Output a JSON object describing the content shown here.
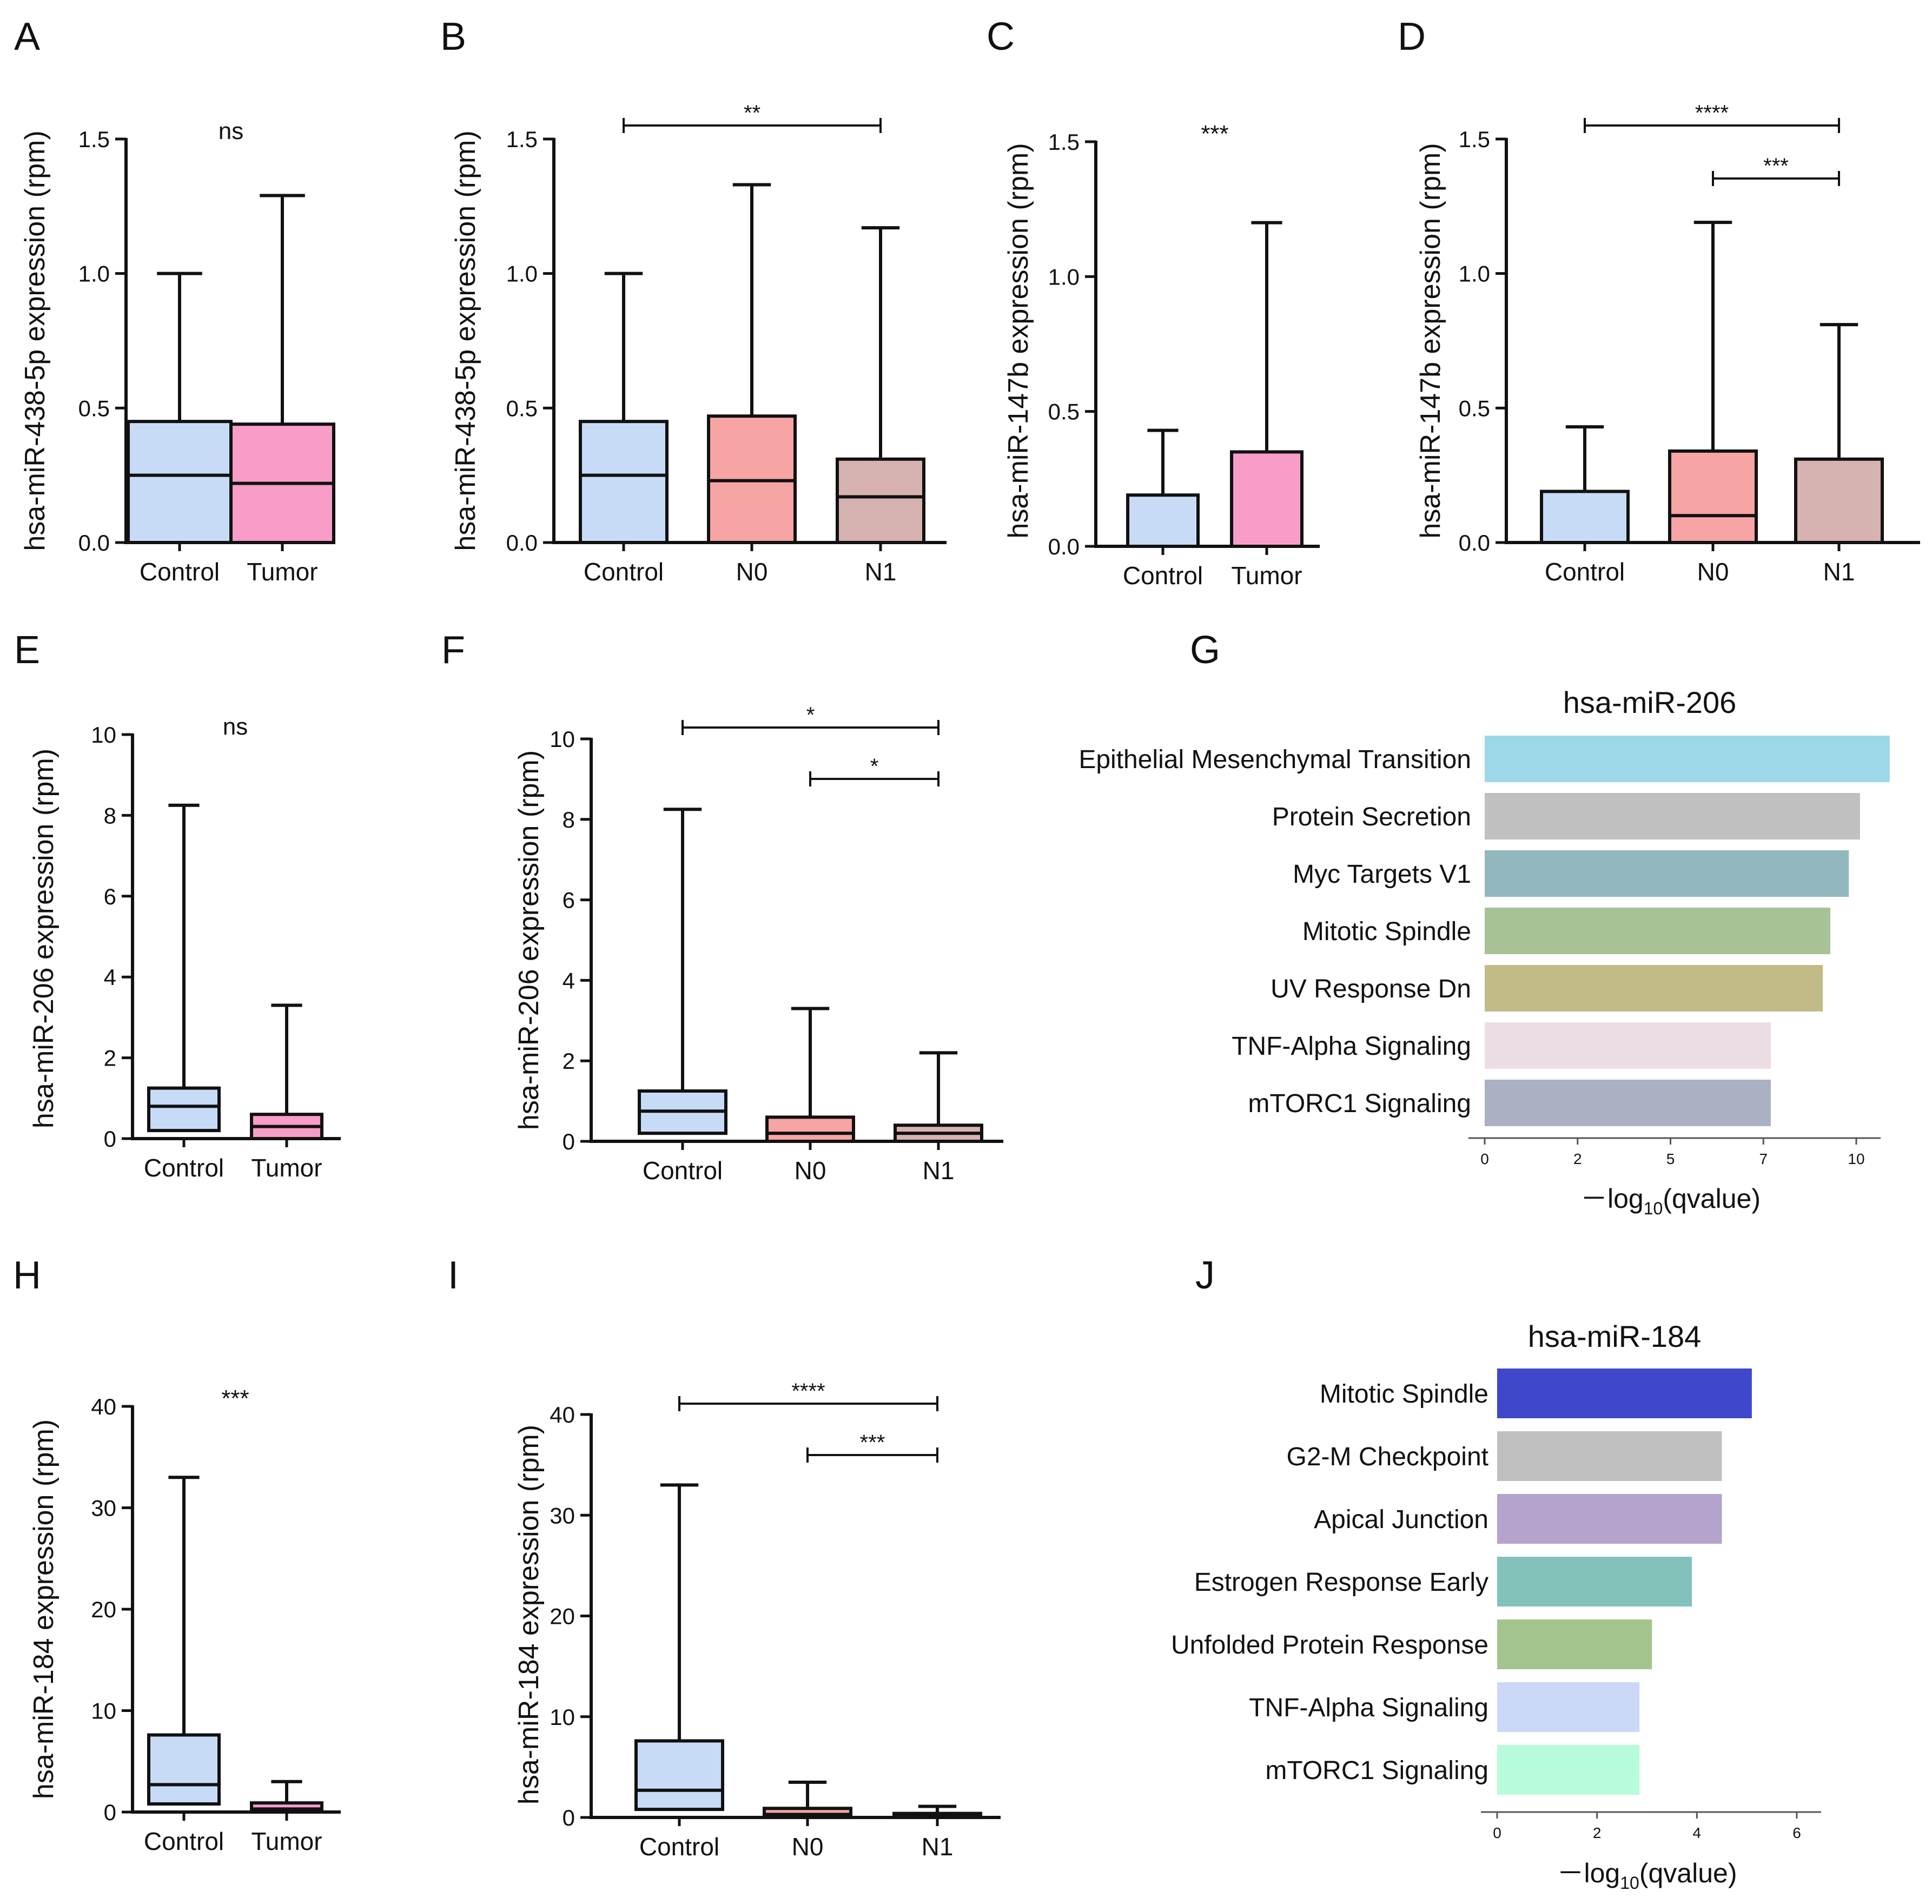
{
  "figure": {
    "panels": [
      {
        "letter": "A",
        "box": {
          "ylabel": "hsa-miR-438-5p expression (rpm)",
          "ticks": [
            "0.0",
            "0.5",
            "1.0",
            "1.5"
          ],
          "groups": [
            {
              "name": "Control",
              "color": "#c7dbf7",
              "q1": 0,
              "median": 0.25,
              "q3": 0.45,
              "max": 1.0
            },
            {
              "name": "Tumor",
              "color": "#f79dc7",
              "q1": 0,
              "median": 0.22,
              "q3": 0.44,
              "max": 1.29
            }
          ],
          "sig": [
            {
              "label": "ns",
              "from": 0,
              "to": 1,
              "line": false
            }
          ]
        }
      },
      {
        "letter": "B",
        "box": {
          "ylabel": "hsa-miR-438-5p expression (rpm)",
          "ticks": [
            "0.0",
            "0.5",
            "1.0",
            "1.5"
          ],
          "groups": [
            {
              "name": "Control",
              "color": "#c7dbf7",
              "q1": 0,
              "median": 0.25,
              "q3": 0.45,
              "max": 1.0
            },
            {
              "name": "N0",
              "color": "#f7a4a4",
              "q1": 0,
              "median": 0.23,
              "q3": 0.47,
              "max": 1.33
            },
            {
              "name": "N1",
              "color": "#d6b2b0",
              "q1": 0,
              "median": 0.17,
              "q3": 0.31,
              "max": 1.17
            }
          ],
          "sig": [
            {
              "label": "**",
              "from": 0,
              "to": 2,
              "line": true
            }
          ]
        }
      },
      {
        "letter": "C",
        "box": {
          "ylabel": "hsa-miR-147b expression (rpm)",
          "ticks": [
            "0.0",
            "0.5",
            "1.0",
            "1.5"
          ],
          "groups": [
            {
              "name": "Control",
              "color": "#c7dbf7",
              "q1": 0,
              "median": 0.0,
              "q3": 0.19,
              "max": 0.43
            },
            {
              "name": "Tumor",
              "color": "#f79dc7",
              "q1": 0,
              "median": 0.0,
              "q3": 0.35,
              "max": 1.2
            }
          ],
          "sig": [
            {
              "label": "***",
              "from": 0,
              "to": 1,
              "line": false
            }
          ]
        }
      },
      {
        "letter": "D",
        "box": {
          "ylabel": "hsa-miR-147b expression (rpm)",
          "ticks": [
            "0.0",
            "0.5",
            "1.0",
            "1.5"
          ],
          "groups": [
            {
              "name": "Control",
              "color": "#c7dbf7",
              "q1": 0,
              "median": 0.0,
              "q3": 0.19,
              "max": 0.43
            },
            {
              "name": "N0",
              "color": "#f7a4a4",
              "q1": 0,
              "median": 0.1,
              "q3": 0.34,
              "max": 1.19
            },
            {
              "name": "N1",
              "color": "#d6b2b0",
              "q1": 0,
              "median": 0.0,
              "q3": 0.31,
              "max": 0.81
            }
          ],
          "sig": [
            {
              "label": "****",
              "from": 0,
              "to": 2,
              "line": true
            },
            {
              "label": "***",
              "from": 1,
              "to": 2,
              "line": true
            }
          ]
        }
      },
      {
        "letter": "E",
        "box": {
          "ylabel": "hsa-miR-206 expression (rpm)",
          "ticks": [
            "0",
            "2",
            "4",
            "6",
            "8",
            "10"
          ],
          "groups": [
            {
              "name": "Control",
              "color": "#c7dbf7",
              "q1": 0.2,
              "median": 0.8,
              "q3": 1.25,
              "max": 8.25
            },
            {
              "name": "Tumor",
              "color": "#f79dc7",
              "q1": 0.0,
              "median": 0.3,
              "q3": 0.6,
              "max": 3.3
            }
          ],
          "sig": [
            {
              "label": "ns",
              "from": 0,
              "to": 1,
              "line": false
            }
          ]
        }
      },
      {
        "letter": "F",
        "box": {
          "ylabel": "hsa-miR-206 expression (rpm)",
          "ticks": [
            "0",
            "2",
            "4",
            "6",
            "8",
            "10"
          ],
          "groups": [
            {
              "name": "Control",
              "color": "#c7dbf7",
              "q1": 0.2,
              "median": 0.75,
              "q3": 1.25,
              "max": 8.25
            },
            {
              "name": "N0",
              "color": "#f7a4a4",
              "q1": 0.0,
              "median": 0.2,
              "q3": 0.6,
              "max": 3.3
            },
            {
              "name": "N1",
              "color": "#d6b2b0",
              "q1": 0.0,
              "median": 0.2,
              "q3": 0.4,
              "max": 2.2
            }
          ],
          "sig": [
            {
              "label": "*",
              "from": 0,
              "to": 2,
              "line": true
            },
            {
              "label": "*",
              "from": 1,
              "to": 2,
              "line": true
            }
          ]
        }
      },
      {
        "letter": "G",
        "bars": {
          "title": "hsa-miR-206",
          "xlabel_pre": "－log",
          "xlabel_sub": "10",
          "xlabel_post": "(qvalue)",
          "ticks": [
            "0",
            "2",
            "5",
            "7",
            "10"
          ],
          "items": [
            {
              "label": "Epithelial Mesenchymal Transition",
              "value": 10.9,
              "color": "#9cd8e8"
            },
            {
              "label": "Protein Secretion",
              "value": 10.1,
              "color": "#c0c0c0"
            },
            {
              "label": "Myc Targets V1",
              "value": 9.8,
              "color": "#92b8bd"
            },
            {
              "label": "Mitotic Spindle",
              "value": 9.3,
              "color": "#a8c195"
            },
            {
              "label": "UV Response Dn",
              "value": 9.1,
              "color": "#c2bb88"
            },
            {
              "label": "TNF-Alpha Signaling",
              "value": 7.7,
              "color": "#ecdde5"
            },
            {
              "label": "mTORC1 Signaling",
              "value": 7.7,
              "color": "#a9b1c2"
            }
          ]
        }
      },
      {
        "letter": "H",
        "box": {
          "ylabel": "hsa-miR-184 expression (rpm)",
          "ticks": [
            "0",
            "10",
            "20",
            "30",
            "40"
          ],
          "groups": [
            {
              "name": "Control",
              "color": "#c7dbf7",
              "q1": 0.8,
              "median": 2.7,
              "q3": 7.6,
              "max": 33
            },
            {
              "name": "Tumor",
              "color": "#f79dc7",
              "q1": 0.0,
              "median": 0.3,
              "q3": 0.9,
              "max": 3.0
            }
          ],
          "sig": [
            {
              "label": "***",
              "from": 0,
              "to": 1,
              "line": false
            }
          ]
        }
      },
      {
        "letter": "I",
        "box": {
          "ylabel": "hsa-miR-184 expression (rpm)",
          "ticks": [
            "0",
            "10",
            "20",
            "30",
            "40"
          ],
          "groups": [
            {
              "name": "Control",
              "color": "#c7dbf7",
              "q1": 0.8,
              "median": 2.7,
              "q3": 7.6,
              "max": 33
            },
            {
              "name": "N0",
              "color": "#f7a4a4",
              "q1": 0.0,
              "median": 0.3,
              "q3": 0.9,
              "max": 3.5
            },
            {
              "name": "N1",
              "color": "#d6b2b0",
              "q1": 0.0,
              "median": 0.2,
              "q3": 0.4,
              "max": 1.1
            }
          ],
          "sig": [
            {
              "label": "****",
              "from": 0,
              "to": 2,
              "line": true
            },
            {
              "label": "***",
              "from": 1,
              "to": 2,
              "line": true
            }
          ]
        }
      },
      {
        "letter": "J",
        "bars": {
          "title": "hsa-miR-184",
          "xlabel_pre": "－log",
          "xlabel_sub": "10",
          "xlabel_post": "(qvalue)",
          "ticks": [
            "0",
            "2",
            "4",
            "6"
          ],
          "items": [
            {
              "label": "Mitotic Spindle",
              "value": 5.1,
              "color": "#3f48cc"
            },
            {
              "label": "G2-M Checkpoint",
              "value": 4.5,
              "color": "#c0c0c0"
            },
            {
              "label": "Apical Junction",
              "value": 4.5,
              "color": "#b4a3cc"
            },
            {
              "label": "Estrogen Response Early",
              "value": 3.9,
              "color": "#82c2bb"
            },
            {
              "label": "Unfolded Protein Response",
              "value": 3.1,
              "color": "#a3c58d"
            },
            {
              "label": "TNF-Alpha Signaling",
              "value": 2.85,
              "color": "#cbd8f8"
            },
            {
              "label": "mTORC1 Signaling",
              "value": 2.85,
              "color": "#b8fbdb"
            }
          ]
        }
      }
    ]
  },
  "chart_data": [
    {
      "type": "box",
      "panel": "A",
      "title": "",
      "ylabel": "hsa-miR-438-5p expression (rpm)",
      "ylim": [
        0,
        1.5
      ],
      "categories": [
        "Control",
        "Tumor"
      ],
      "series": [
        {
          "name": "Control",
          "median": 0.25,
          "q3": 0.45,
          "max": 1.0
        },
        {
          "name": "Tumor",
          "median": 0.22,
          "q3": 0.44,
          "max": 1.29
        }
      ],
      "annotations": [
        "ns"
      ]
    },
    {
      "type": "box",
      "panel": "B",
      "ylabel": "hsa-miR-438-5p expression (rpm)",
      "ylim": [
        0,
        1.5
      ],
      "categories": [
        "Control",
        "N0",
        "N1"
      ],
      "series": [
        {
          "name": "Control",
          "median": 0.25,
          "q3": 0.45,
          "max": 1.0
        },
        {
          "name": "N0",
          "median": 0.23,
          "q3": 0.47,
          "max": 1.33
        },
        {
          "name": "N1",
          "median": 0.17,
          "q3": 0.31,
          "max": 1.17
        }
      ],
      "annotations": [
        "**"
      ]
    },
    {
      "type": "box",
      "panel": "C",
      "ylabel": "hsa-miR-147b expression (rpm)",
      "ylim": [
        0,
        1.5
      ],
      "categories": [
        "Control",
        "Tumor"
      ],
      "series": [
        {
          "name": "Control",
          "q3": 0.19,
          "max": 0.43
        },
        {
          "name": "Tumor",
          "q3": 0.35,
          "max": 1.2
        }
      ],
      "annotations": [
        "***"
      ]
    },
    {
      "type": "box",
      "panel": "D",
      "ylabel": "hsa-miR-147b expression (rpm)",
      "ylim": [
        0,
        1.5
      ],
      "categories": [
        "Control",
        "N0",
        "N1"
      ],
      "series": [
        {
          "name": "Control",
          "q3": 0.19,
          "max": 0.43
        },
        {
          "name": "N0",
          "median": 0.1,
          "q3": 0.34,
          "max": 1.19
        },
        {
          "name": "N1",
          "q3": 0.31,
          "max": 0.81
        }
      ],
      "annotations": [
        "****",
        "***"
      ]
    },
    {
      "type": "box",
      "panel": "E",
      "ylabel": "hsa-miR-206 expression (rpm)",
      "ylim": [
        0,
        10
      ],
      "categories": [
        "Control",
        "Tumor"
      ],
      "series": [
        {
          "name": "Control",
          "q1": 0.2,
          "median": 0.8,
          "q3": 1.25,
          "max": 8.25
        },
        {
          "name": "Tumor",
          "median": 0.3,
          "q3": 0.6,
          "max": 3.3
        }
      ],
      "annotations": [
        "ns"
      ]
    },
    {
      "type": "box",
      "panel": "F",
      "ylabel": "hsa-miR-206 expression (rpm)",
      "ylim": [
        0,
        10
      ],
      "categories": [
        "Control",
        "N0",
        "N1"
      ],
      "series": [
        {
          "name": "Control",
          "q1": 0.2,
          "median": 0.75,
          "q3": 1.25,
          "max": 8.25
        },
        {
          "name": "N0",
          "median": 0.2,
          "q3": 0.6,
          "max": 3.3
        },
        {
          "name": "N1",
          "median": 0.2,
          "q3": 0.4,
          "max": 2.2
        }
      ],
      "annotations": [
        "*",
        "*"
      ]
    },
    {
      "type": "bar",
      "panel": "G",
      "title": "hsa-miR-206",
      "xlabel": "－log10(qvalue)",
      "categories": [
        "Epithelial Mesenchymal Transition",
        "Protein Secretion",
        "Myc Targets V1",
        "Mitotic Spindle",
        "UV Response Dn",
        "TNF-Alpha Signaling",
        "mTORC1 Signaling"
      ],
      "values": [
        10.9,
        10.1,
        9.8,
        9.3,
        9.1,
        7.7,
        7.7
      ]
    },
    {
      "type": "box",
      "panel": "H",
      "ylabel": "hsa-miR-184 expression (rpm)",
      "ylim": [
        0,
        40
      ],
      "categories": [
        "Control",
        "Tumor"
      ],
      "series": [
        {
          "name": "Control",
          "q1": 0.8,
          "median": 2.7,
          "q3": 7.6,
          "max": 33
        },
        {
          "name": "Tumor",
          "median": 0.3,
          "q3": 0.9,
          "max": 3.0
        }
      ],
      "annotations": [
        "***"
      ]
    },
    {
      "type": "box",
      "panel": "I",
      "ylabel": "hsa-miR-184 expression (rpm)",
      "ylim": [
        0,
        40
      ],
      "categories": [
        "Control",
        "N0",
        "N1"
      ],
      "series": [
        {
          "name": "Control",
          "q1": 0.8,
          "median": 2.7,
          "q3": 7.6,
          "max": 33
        },
        {
          "name": "N0",
          "median": 0.3,
          "q3": 0.9,
          "max": 3.5
        },
        {
          "name": "N1",
          "median": 0.2,
          "q3": 0.4,
          "max": 1.1
        }
      ],
      "annotations": [
        "****",
        "***"
      ]
    },
    {
      "type": "bar",
      "panel": "J",
      "title": "hsa-miR-184",
      "xlabel": "－log10(qvalue)",
      "categories": [
        "Mitotic Spindle",
        "G2-M Checkpoint",
        "Apical Junction",
        "Estrogen Response Early",
        "Unfolded Protein Response",
        "TNF-Alpha Signaling",
        "mTORC1 Signaling"
      ],
      "values": [
        5.1,
        4.5,
        4.5,
        3.9,
        3.1,
        2.85,
        2.85
      ]
    }
  ]
}
